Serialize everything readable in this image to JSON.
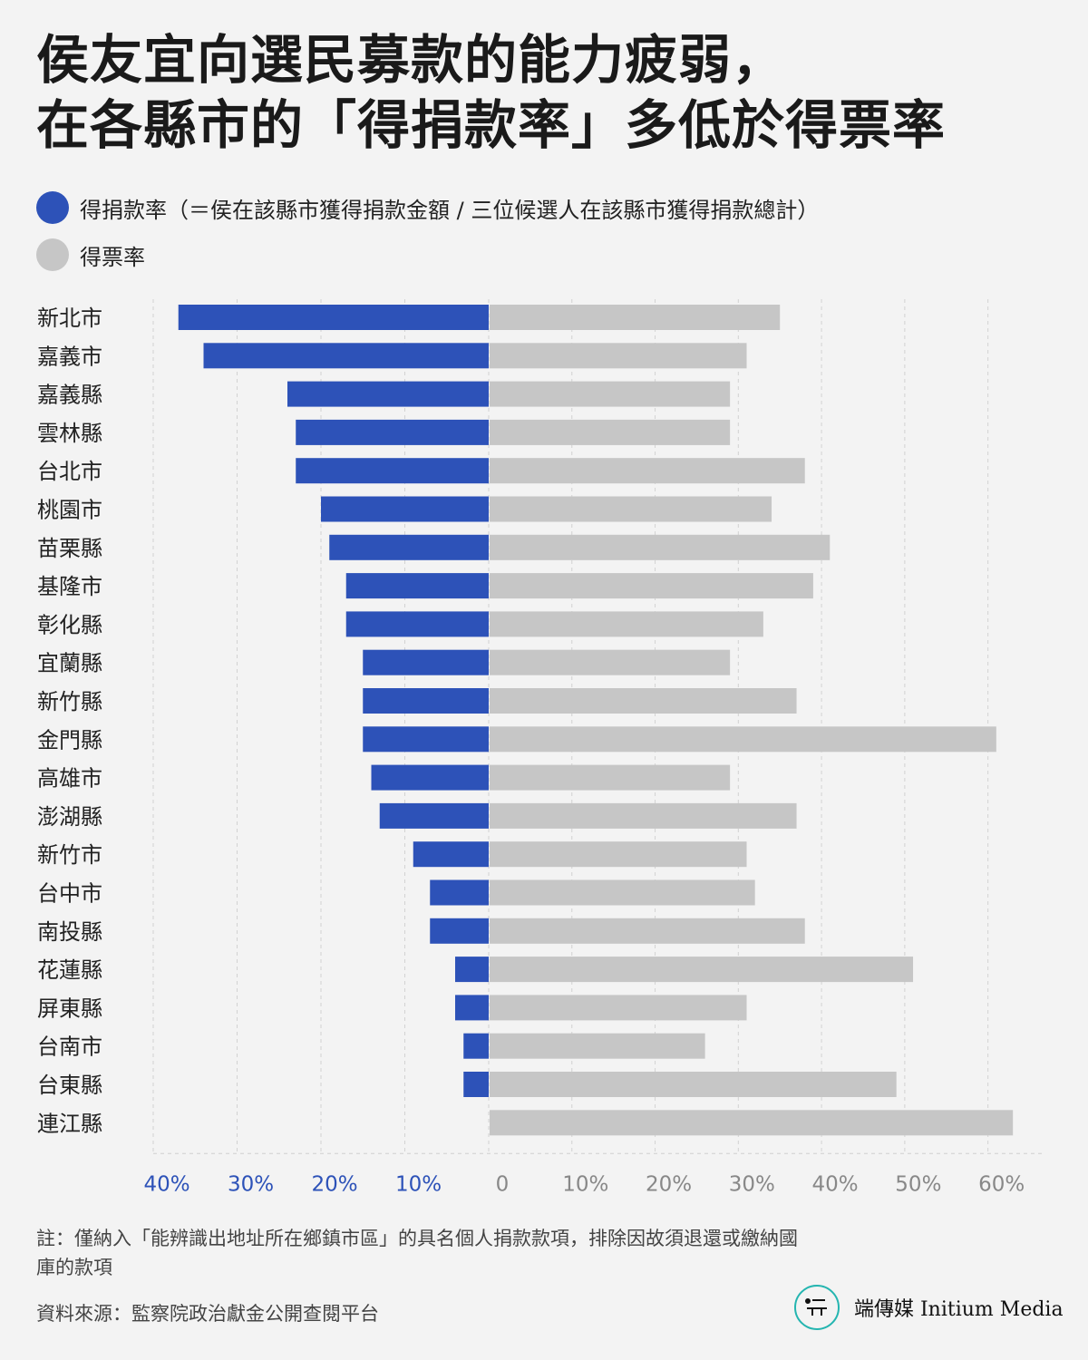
{
  "header": {
    "title_line1": "侯友宜向選民募款的能力疲弱，",
    "title_line2": "在各縣市的「得捐款率」多低於得票率"
  },
  "legend": {
    "items": [
      {
        "label": "得捐款率（＝侯在該縣市獲得捐款金額 / 三位候選人在該縣市獲得捐款總計）",
        "color": "#2d52b8"
      },
      {
        "label": "得票率",
        "color": "#c6c6c6"
      }
    ]
  },
  "chart_data": {
    "type": "bar",
    "orientation": "horizontal-diverging",
    "categories": [
      "新北市",
      "嘉義市",
      "嘉義縣",
      "雲林縣",
      "台北市",
      "桃園市",
      "苗栗縣",
      "基隆市",
      "彰化縣",
      "宜蘭縣",
      "新竹縣",
      "金門縣",
      "高雄市",
      "澎湖縣",
      "新竹市",
      "台中市",
      "南投縣",
      "花蓮縣",
      "屏東縣",
      "台南市",
      "台東縣",
      "連江縣"
    ],
    "series": [
      {
        "name": "得捐款率",
        "color": "#2d52b8",
        "side": "left",
        "values": [
          37,
          34,
          24,
          23,
          23,
          20,
          19,
          17,
          17,
          15,
          15,
          15,
          14,
          13,
          9,
          7,
          7,
          4,
          4,
          3,
          3,
          0
        ]
      },
      {
        "name": "得票率",
        "color": "#c6c6c6",
        "side": "right",
        "values": [
          35,
          31,
          29,
          29,
          38,
          34,
          41,
          39,
          33,
          29,
          37,
          61,
          29,
          37,
          31,
          32,
          38,
          51,
          31,
          26,
          49,
          63
        ]
      }
    ],
    "left_axis": {
      "range": [
        0,
        40
      ],
      "ticks": [
        40,
        30,
        20,
        10
      ],
      "tick_labels": [
        "40%",
        "30%",
        "20%",
        "10%"
      ],
      "color": "#2d52b8"
    },
    "right_axis": {
      "range": [
        0,
        63
      ],
      "ticks": [
        0,
        10,
        20,
        30,
        40,
        50,
        60
      ],
      "tick_labels": [
        "0",
        "10%",
        "20%",
        "30%",
        "40%",
        "50%",
        "60%"
      ],
      "color": "#888888"
    },
    "grid": true
  },
  "footer": {
    "note": "註：僅納入「能辨識出地址所在鄉鎮市區」的具名個人捐款款項，排除因故須退還或繳納國庫的款項",
    "source": "資料來源：監察院政治獻金公開查閱平台",
    "brand_name": "端傳媒 Initium Media",
    "brand_accent": "#24b5b0"
  }
}
